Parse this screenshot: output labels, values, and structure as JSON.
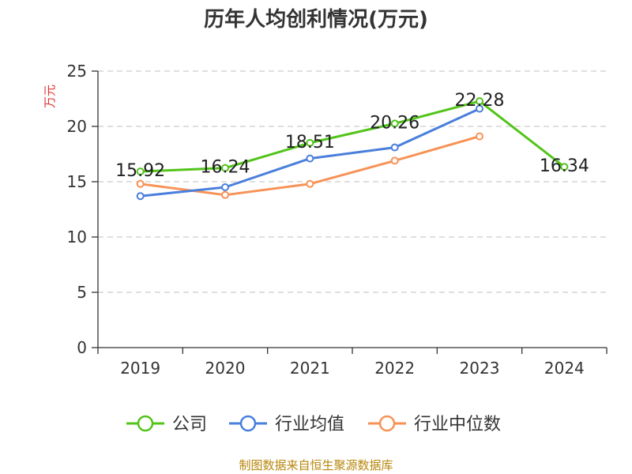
{
  "chart_data": {
    "type": "line",
    "title": "历年人均创利情况(万元)",
    "ylabel": "万元",
    "xlabel": "",
    "categories": [
      "2019",
      "2020",
      "2021",
      "2022",
      "2023",
      "2024"
    ],
    "ylim": [
      0,
      25
    ],
    "yticks": [
      0,
      5,
      10,
      15,
      20,
      25
    ],
    "grid": true,
    "legend_position": "bottom",
    "series": [
      {
        "name": "公司",
        "color": "#52c41a",
        "values": [
          15.92,
          16.24,
          18.51,
          20.26,
          22.28,
          16.34
        ],
        "labels": [
          "15.92",
          "16.24",
          "18.51",
          "20.26",
          "22.28",
          "16.34"
        ]
      },
      {
        "name": "行业均值",
        "color": "#4a7fdb",
        "values": [
          13.7,
          14.5,
          17.1,
          18.1,
          21.6,
          null
        ]
      },
      {
        "name": "行业中位数",
        "color": "#f79256",
        "values": [
          14.8,
          13.8,
          14.8,
          16.9,
          19.1,
          null
        ]
      }
    ]
  },
  "source_text": "制图数据来自恒生聚源数据库",
  "colors": {
    "ylabel": "#e03030",
    "grid": "#cccccc",
    "axis": "#333333"
  }
}
